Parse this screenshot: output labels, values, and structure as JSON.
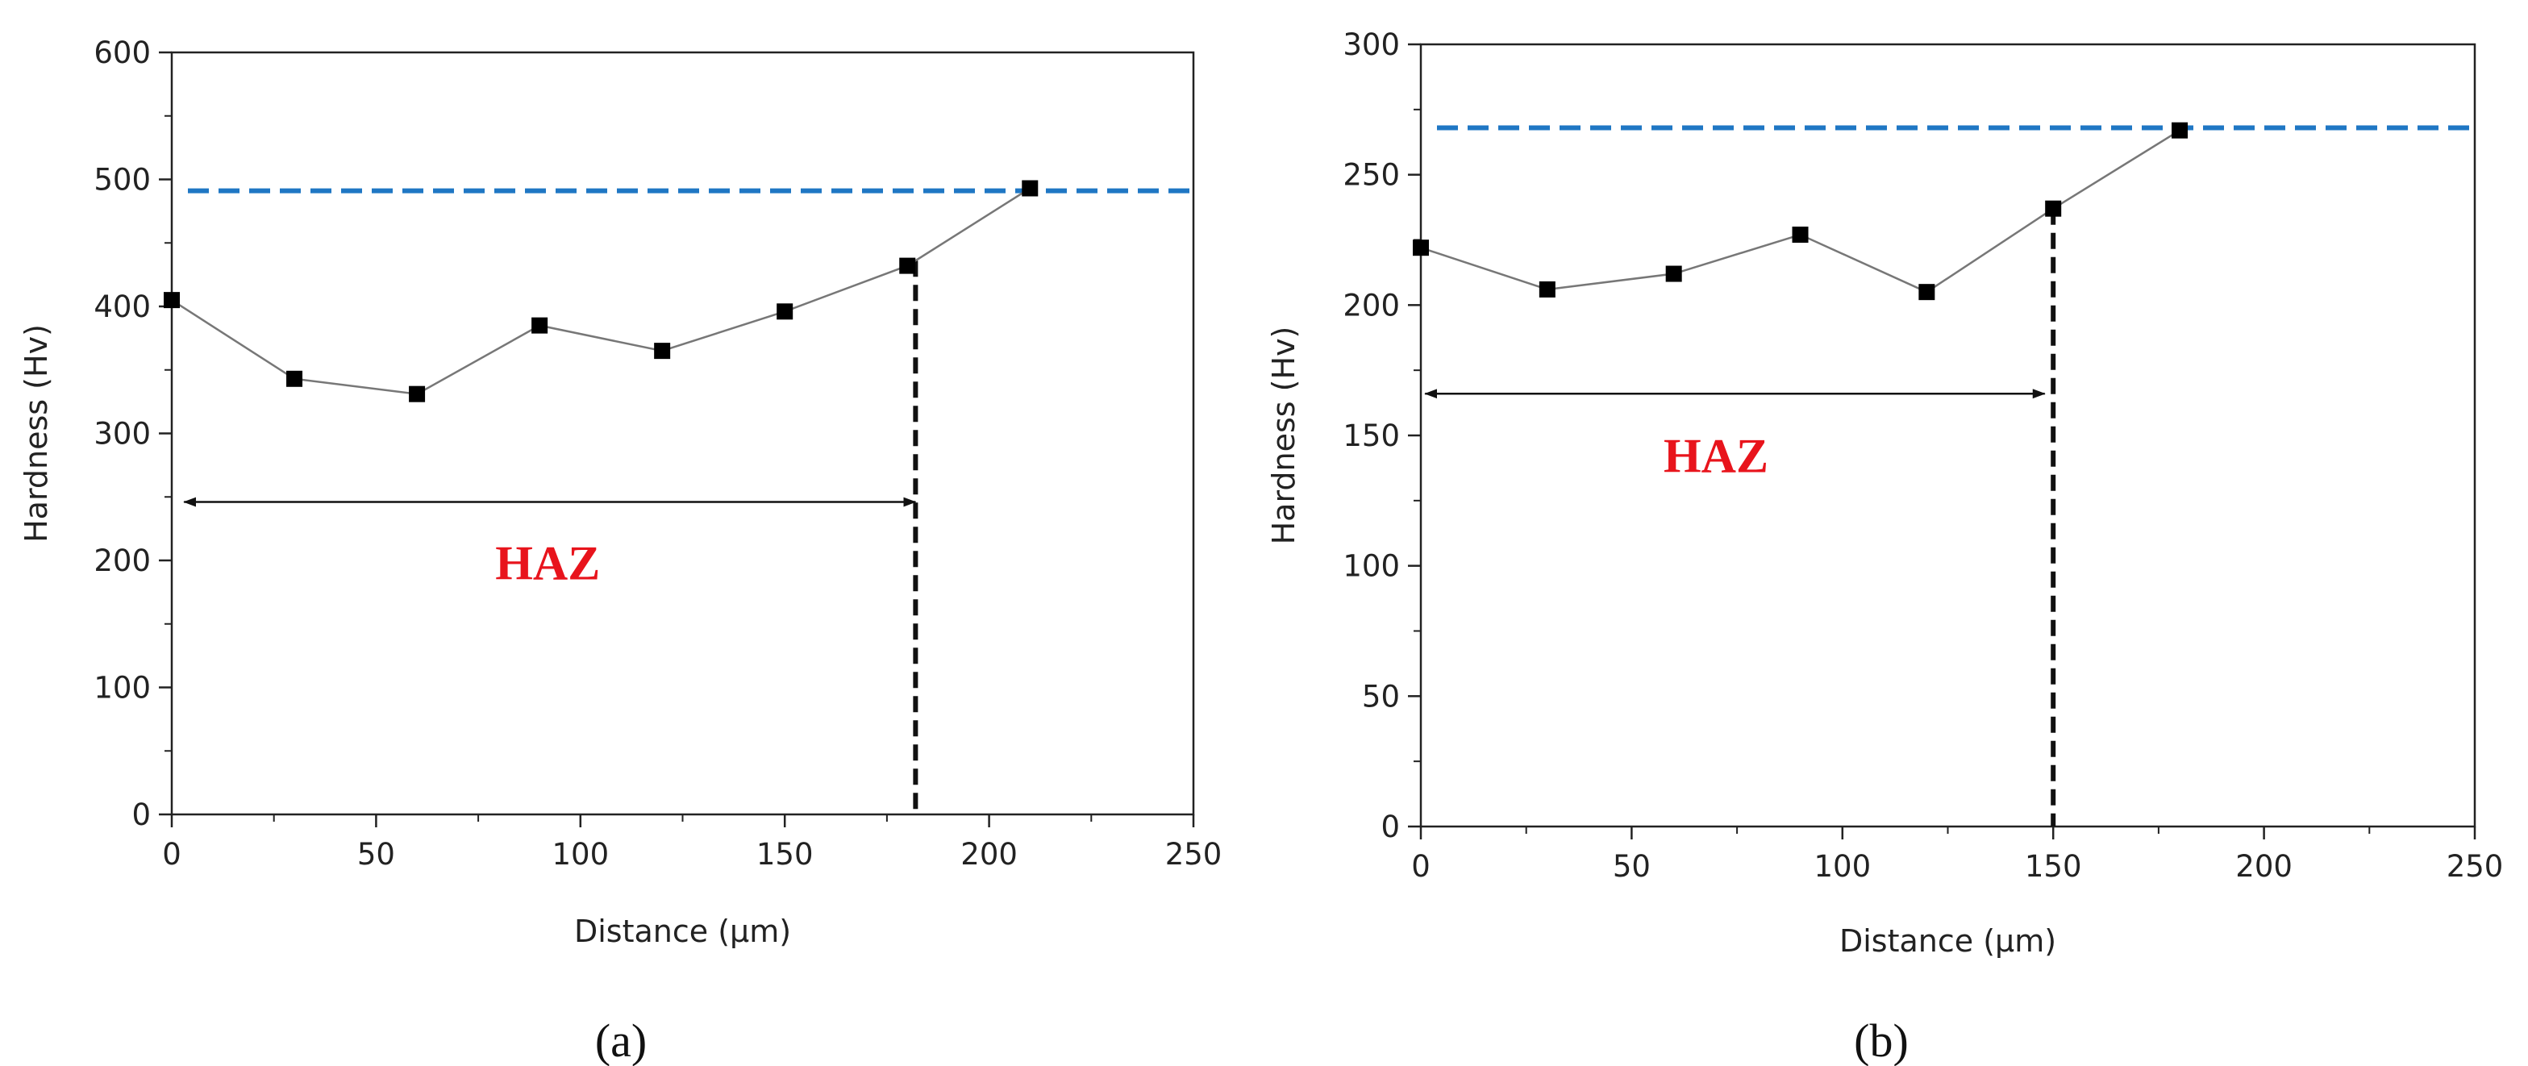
{
  "chart_data": [
    {
      "type": "line",
      "caption": "(a)",
      "x": [
        0,
        30,
        60,
        90,
        120,
        150,
        180,
        210
      ],
      "values": [
        405,
        343,
        331,
        385,
        365,
        396,
        432,
        493
      ],
      "xlabel": "Distance (µm)",
      "ylabel": "Hardness (Hv)",
      "xlim": [
        0,
        250
      ],
      "ylim": [
        0,
        600
      ],
      "xticks": [
        0,
        50,
        100,
        150,
        200,
        250
      ],
      "yticks": [
        0,
        100,
        200,
        300,
        400,
        500,
        600
      ],
      "reference_line": {
        "y": 491,
        "color": "#1f77c4",
        "style": "dashed"
      },
      "boundary_line": {
        "x": 182,
        "style": "dashed"
      },
      "haz_arrow": {
        "from": 3,
        "to": 182,
        "y": 246
      },
      "annotation": "HAZ",
      "annotation_pos": {
        "x": 92,
        "y": 185
      }
    },
    {
      "type": "line",
      "caption": "(b)",
      "x": [
        0,
        30,
        60,
        90,
        120,
        150,
        180
      ],
      "values": [
        222,
        206,
        212,
        227,
        205,
        237,
        267
      ],
      "xlabel": "Distance (µm)",
      "ylabel": "Hardness (Hv)",
      "xlim": [
        0,
        250
      ],
      "ylim": [
        0,
        300
      ],
      "xticks": [
        0,
        50,
        100,
        150,
        200,
        250
      ],
      "yticks": [
        0,
        50,
        100,
        150,
        200,
        250,
        300
      ],
      "reference_line": {
        "y": 268,
        "color": "#1f77c4",
        "style": "dashed"
      },
      "boundary_line": {
        "x": 150,
        "style": "dashed"
      },
      "haz_arrow": {
        "from": 1,
        "to": 148,
        "y": 166
      },
      "annotation": "HAZ",
      "annotation_pos": {
        "x": 70,
        "y": 136
      }
    }
  ]
}
